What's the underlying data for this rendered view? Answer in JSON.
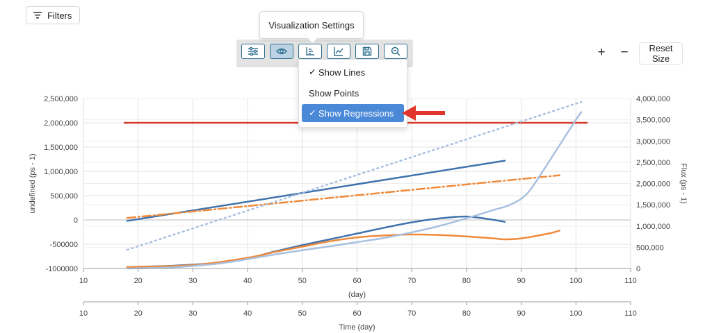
{
  "filters": {
    "label": "Filters",
    "icon": "filter-icon"
  },
  "tooltip": {
    "text": "Visualization Settings"
  },
  "toolbar": {
    "buttons": [
      {
        "icon": "sliders-icon",
        "active": false
      },
      {
        "icon": "eye-icon",
        "active": true
      },
      {
        "icon": "axis-icon",
        "active": false
      },
      {
        "icon": "line-chart-icon",
        "active": false
      },
      {
        "icon": "save-icon",
        "active": false
      },
      {
        "icon": "zoom-out-icon",
        "active": false
      }
    ]
  },
  "dropdown": {
    "items": [
      {
        "label": "Show Lines",
        "checked": true,
        "selected": false
      },
      {
        "label": "Show Points",
        "checked": false,
        "selected": false
      },
      {
        "label": "Show Regressions",
        "checked": true,
        "selected": true
      }
    ]
  },
  "zoom": {
    "plus": "+",
    "minus": "−",
    "reset": "Reset Size"
  },
  "colors": {
    "accent": "#4a88d8",
    "arrow": "#e0352b"
  },
  "chart_data": {
    "type": "line",
    "xlabel": "(day)",
    "xlabel2": "Time (day)",
    "ylabel": "undefined (ps - 1)",
    "y2label": "Flux (ps - 1)",
    "xlim": [
      10,
      110
    ],
    "ylim": [
      -1000000,
      2500000
    ],
    "y2lim": [
      0,
      4000000
    ],
    "x_ticks": [
      10,
      20,
      30,
      40,
      50,
      60,
      70,
      80,
      90,
      100,
      110
    ],
    "y_ticks": [
      {
        "v": 2500000,
        "label": "2,500,000"
      },
      {
        "v": 2000000,
        "label": "2,000,000"
      },
      {
        "v": 1500000,
        "label": "1,500,000"
      },
      {
        "v": 1000000,
        "label": "1,000,000"
      },
      {
        "v": 500000,
        "label": "500,000"
      },
      {
        "v": 0,
        "label": "0"
      },
      {
        "v": -500000,
        "label": "-500000"
      },
      {
        "v": -1000000,
        "label": "-1000000"
      }
    ],
    "y2_ticks": [
      {
        "v": 4000000,
        "label": "4,000,000"
      },
      {
        "v": 3500000,
        "label": "3,500,000"
      },
      {
        "v": 3000000,
        "label": "3,000,000"
      },
      {
        "v": 2500000,
        "label": "2,500,000"
      },
      {
        "v": 2000000,
        "label": "2,000,000"
      },
      {
        "v": 1500000,
        "label": "1,500,000"
      },
      {
        "v": 1000000,
        "label": "1,000,000"
      },
      {
        "v": 500000,
        "label": "500,000"
      },
      {
        "v": 0,
        "label": "0"
      }
    ],
    "grid": true,
    "series": [
      {
        "axis": "y",
        "style": "solid",
        "color": "#d63b2f",
        "x": [
          17.5,
          102
        ],
        "y": [
          2000000,
          2000000
        ]
      },
      {
        "axis": "y",
        "style": "solid",
        "color": "#3f73ad",
        "x": [
          18,
          87
        ],
        "y": [
          -20000,
          1220000
        ]
      },
      {
        "axis": "y",
        "style": "dashdot",
        "color": "#ef8a3a",
        "x": [
          18,
          97
        ],
        "y": [
          40000,
          920000
        ]
      },
      {
        "axis": "y2",
        "style": "dotted",
        "color": "#a8c0e0",
        "x": [
          18,
          101
        ],
        "y": [
          440000,
          3920000
        ]
      },
      {
        "axis": "y",
        "style": "solid",
        "color": "#3f73ad",
        "x": [
          18,
          25,
          30,
          35,
          40,
          45,
          50,
          55,
          60,
          65,
          70,
          75,
          80,
          85,
          87
        ],
        "y": [
          -970000,
          -950000,
          -920000,
          -880000,
          -790000,
          -650000,
          -520000,
          -400000,
          -280000,
          -160000,
          -50000,
          30000,
          70000,
          0,
          -40000
        ]
      },
      {
        "axis": "y",
        "style": "solid",
        "color": "#ef8a3a",
        "x": [
          18,
          30,
          40,
          45,
          50,
          55,
          60,
          65,
          70,
          75,
          80,
          85,
          87,
          90,
          95,
          97
        ],
        "y": [
          -970000,
          -930000,
          -780000,
          -660000,
          -550000,
          -440000,
          -360000,
          -320000,
          -300000,
          -310000,
          -340000,
          -380000,
          -400000,
          -380000,
          -280000,
          -220000
        ]
      },
      {
        "axis": "y2",
        "style": "solid",
        "color": "#a8c0e0",
        "x": [
          18,
          25,
          30,
          35,
          40,
          45,
          50,
          55,
          60,
          65,
          70,
          75,
          80,
          85,
          88,
          91,
          94,
          97,
          100,
          101
        ],
        "y": [
          0,
          20000,
          60000,
          120000,
          220000,
          330000,
          430000,
          520000,
          620000,
          720000,
          850000,
          1000000,
          1180000,
          1380000,
          1500000,
          1750000,
          2300000,
          2900000,
          3500000,
          3680000
        ]
      }
    ]
  }
}
